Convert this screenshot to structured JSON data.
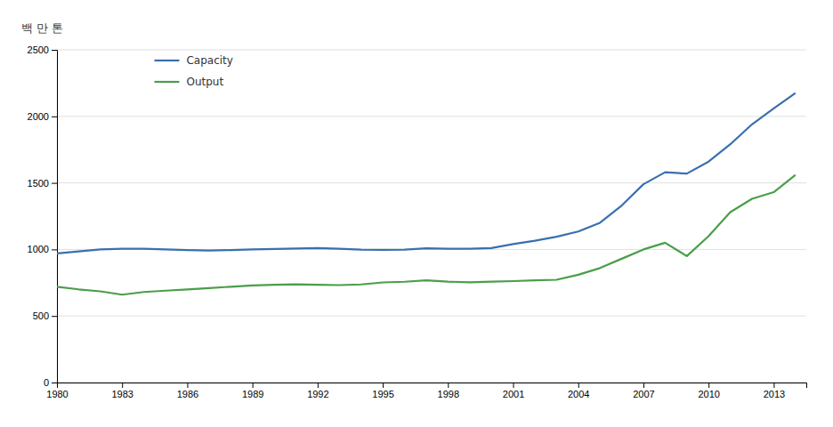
{
  "chart_data": {
    "type": "line",
    "ylabel": "백 만 톤",
    "x": [
      1980,
      1981,
      1982,
      1983,
      1984,
      1985,
      1986,
      1987,
      1988,
      1989,
      1990,
      1991,
      1992,
      1993,
      1994,
      1995,
      1996,
      1997,
      1998,
      1999,
      2000,
      2001,
      2002,
      2003,
      2004,
      2005,
      2006,
      2007,
      2008,
      2009,
      2010,
      2011,
      2012,
      2013,
      2014
    ],
    "series": [
      {
        "name": "Capacity",
        "color": "#3a6faf",
        "values": [
          970,
          985,
          1000,
          1005,
          1005,
          1000,
          995,
          992,
          995,
          1000,
          1003,
          1007,
          1010,
          1005,
          998,
          997,
          998,
          1008,
          1005,
          1005,
          1010,
          1040,
          1065,
          1095,
          1135,
          1200,
          1330,
          1490,
          1580,
          1570,
          1660,
          1790,
          1940,
          2060,
          2175
        ]
      },
      {
        "name": "Output",
        "color": "#4a9e4a",
        "values": [
          720,
          700,
          685,
          660,
          680,
          690,
          700,
          710,
          720,
          730,
          735,
          738,
          735,
          732,
          737,
          752,
          757,
          768,
          758,
          753,
          758,
          762,
          768,
          772,
          810,
          860,
          930,
          1000,
          1050,
          950,
          1100,
          1280,
          1380,
          1430,
          1560
        ]
      }
    ],
    "xlim": [
      1980,
      2014.5
    ],
    "xticks": [
      1980,
      1983,
      1986,
      1989,
      1992,
      1995,
      1998,
      2001,
      2004,
      2007,
      2010,
      2013
    ],
    "ylim": [
      0,
      2500
    ],
    "yticks": [
      0,
      500,
      1000,
      1500,
      2000,
      2500
    ],
    "grid": true,
    "legend": "upper left"
  }
}
